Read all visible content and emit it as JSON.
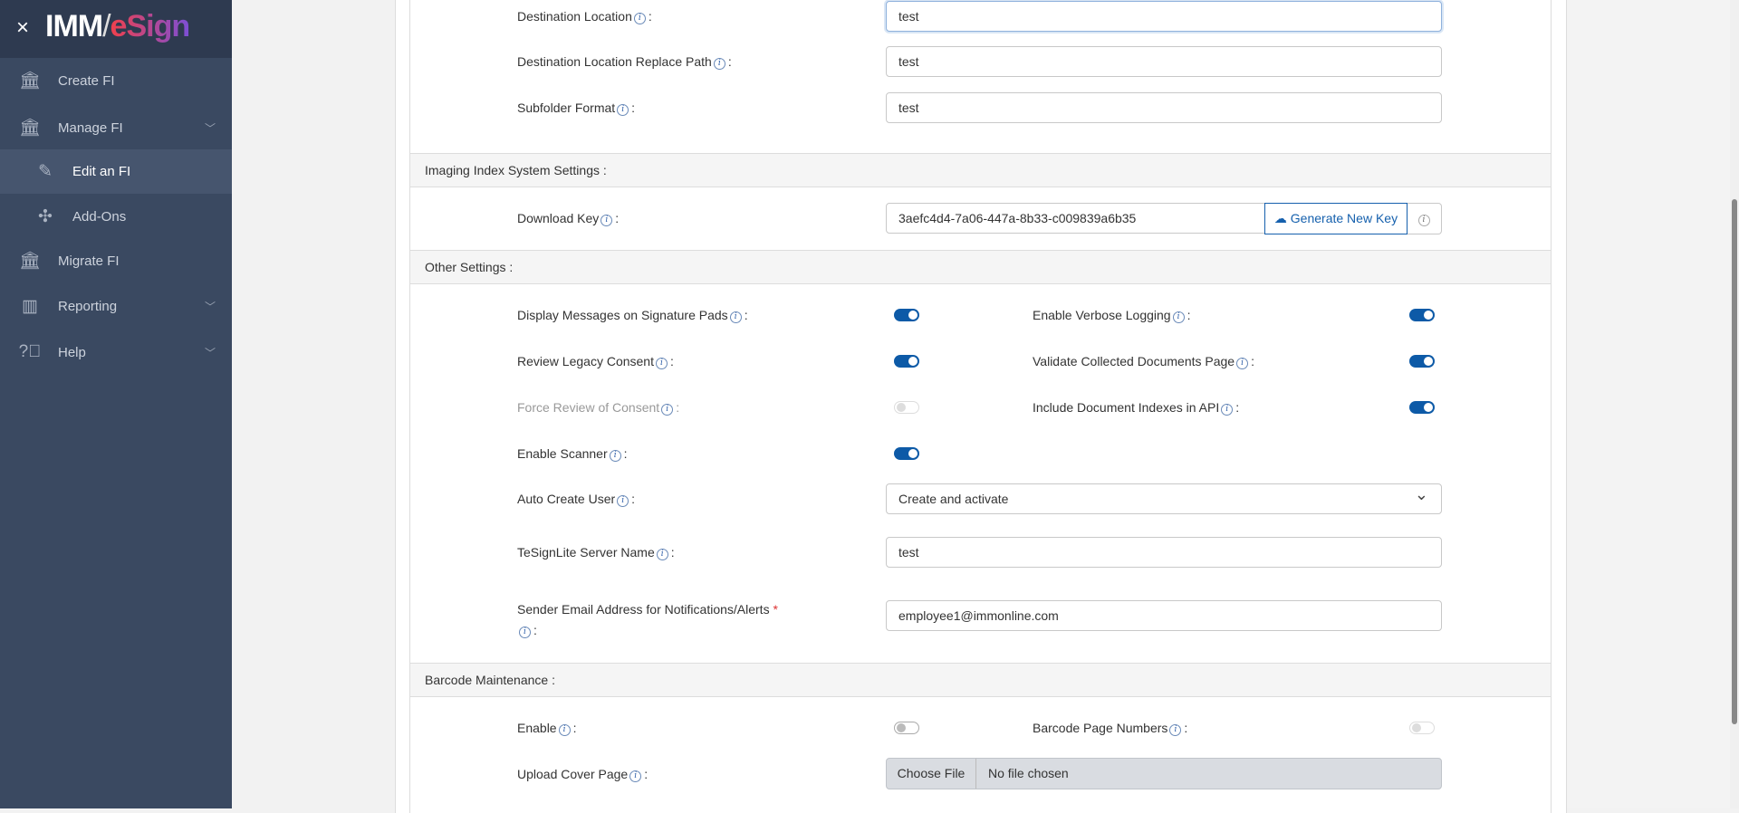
{
  "brand": {
    "close": "×",
    "logo_imm": "IMM",
    "logo_esign": "eSign"
  },
  "sidebar": {
    "items": [
      {
        "label": "Create FI",
        "icon": "bank-plus-icon"
      },
      {
        "label": "Manage FI",
        "icon": "bank-gear-icon"
      },
      {
        "label": "Edit an FI",
        "icon": "pencil-icon"
      },
      {
        "label": "Add-Ons",
        "icon": "puzzle-icon"
      },
      {
        "label": "Migrate FI",
        "icon": "bank-arrow-icon"
      },
      {
        "label": "Reporting",
        "icon": "bar-chart-icon"
      },
      {
        "label": "Help",
        "icon": "help-bubble-icon"
      }
    ]
  },
  "fields": {
    "dest_location": {
      "label": "Destination Location",
      "value": "test"
    },
    "dest_replace": {
      "label": "Destination Location Replace Path",
      "value": "test"
    },
    "subfolder": {
      "label": "Subfolder Format",
      "value": "test"
    }
  },
  "imaging": {
    "header": "Imaging Index System Settings :",
    "download_key_label": "Download Key",
    "download_key": "3aefc4d4-7a06-447a-8b33-c009839a6b35",
    "generate": "Generate New Key"
  },
  "other": {
    "header": "Other Settings :",
    "toggles": [
      {
        "label": "Display Messages on Signature Pads",
        "on": true,
        "disabled": false
      },
      {
        "label": "Enable Verbose Logging",
        "on": true,
        "disabled": false
      },
      {
        "label": "Review Legacy Consent",
        "on": true,
        "disabled": false
      },
      {
        "label": "Validate Collected Documents Page",
        "on": true,
        "disabled": false
      },
      {
        "label": "Force Review of Consent",
        "on": false,
        "disabled": true
      },
      {
        "label": "Include Document Indexes in API",
        "on": true,
        "disabled": false
      },
      {
        "label": "Enable Scanner",
        "on": true,
        "disabled": false
      }
    ],
    "auto_create_label": "Auto Create User",
    "auto_create_value": "Create and activate",
    "server_label": "TeSignLite Server Name",
    "server_value": "test",
    "email_label": "Sender Email Address for Notifications/Alerts",
    "email_value": "employee1@immonline.com"
  },
  "barcode": {
    "header": "Barcode Maintenance :",
    "enable_label": "Enable",
    "enable_on": false,
    "page_numbers_label": "Barcode Page Numbers",
    "page_numbers_on": false,
    "page_numbers_disabled": true,
    "upload_label": "Upload Cover Page",
    "choose": "Choose File",
    "no_file": "No file chosen"
  },
  "colors": {
    "sidebar": "#3a4961",
    "accent": "#0d5aa7"
  }
}
